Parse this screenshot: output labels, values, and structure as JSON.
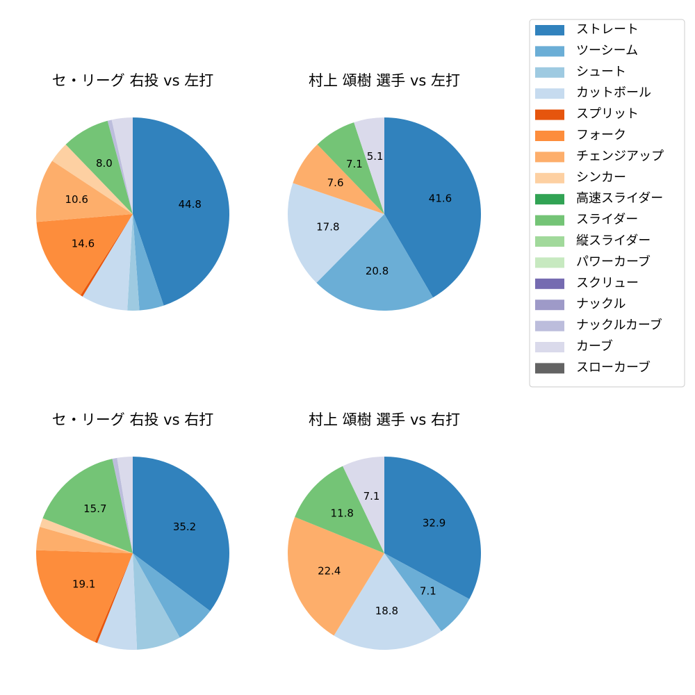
{
  "chart_data": [
    {
      "type": "pie",
      "title": "セ・リーグ 右投 vs 左打",
      "values": [
        44.8,
        4.1,
        2.0,
        7.8,
        0.4,
        14.6,
        10.6,
        3.5,
        0,
        8.0,
        0,
        0,
        0,
        0,
        0.7,
        3.5,
        0
      ],
      "value_labels": [
        "44.8",
        null,
        null,
        null,
        null,
        "14.6",
        "10.6",
        null,
        null,
        "8.0",
        null,
        null,
        null,
        null,
        null,
        null,
        null
      ]
    },
    {
      "type": "pie",
      "title": "村上 頌樹 選手 vs 左打",
      "values": [
        41.6,
        20.8,
        0,
        17.8,
        0,
        0,
        7.6,
        0,
        0,
        7.1,
        0,
        0,
        0,
        0,
        0,
        5.1,
        0
      ],
      "value_labels": [
        "41.6",
        "20.8",
        null,
        "17.8",
        null,
        null,
        "7.6",
        null,
        null,
        "7.1",
        null,
        null,
        null,
        null,
        null,
        "5.1",
        null
      ]
    },
    {
      "type": "pie",
      "title": "セ・リーグ 右投 vs 右打",
      "values": [
        35.2,
        6.7,
        7.4,
        6.7,
        0.4,
        19.1,
        3.9,
        1.5,
        0,
        15.7,
        0,
        0,
        0,
        0,
        0.8,
        2.6,
        0
      ],
      "value_labels": [
        "35.2",
        null,
        null,
        null,
        null,
        "19.1",
        null,
        null,
        null,
        "15.7",
        null,
        null,
        null,
        null,
        null,
        null,
        null
      ]
    },
    {
      "type": "pie",
      "title": "村上 頌樹 選手 vs 右打",
      "values": [
        32.9,
        7.1,
        0,
        18.8,
        0,
        0,
        22.4,
        0,
        0,
        11.8,
        0,
        0,
        0,
        0,
        0,
        7.1,
        0
      ],
      "value_labels": [
        "32.9",
        "7.1",
        null,
        "18.8",
        null,
        null,
        "22.4",
        null,
        null,
        "11.8",
        null,
        null,
        null,
        null,
        null,
        "7.1",
        null
      ]
    }
  ],
  "legend": {
    "position": "upper right",
    "categories": [
      "ストレート",
      "ツーシーム",
      "シュート",
      "カットボール",
      "スプリット",
      "フォーク",
      "チェンジアップ",
      "シンカー",
      "高速スライダー",
      "スライダー",
      "縦スライダー",
      "パワーカーブ",
      "スクリュー",
      "ナックル",
      "ナックルカーブ",
      "カーブ",
      "スローカーブ"
    ],
    "colors": [
      "#3182bd",
      "#6baed6",
      "#9ecae1",
      "#c6dbef",
      "#e6550d",
      "#fd8d3c",
      "#fdae6b",
      "#fdd0a2",
      "#31a354",
      "#74c476",
      "#a1d99b",
      "#c7e9c0",
      "#756bb1",
      "#9e9ac8",
      "#bcbddc",
      "#dadaeb",
      "#636363"
    ]
  }
}
